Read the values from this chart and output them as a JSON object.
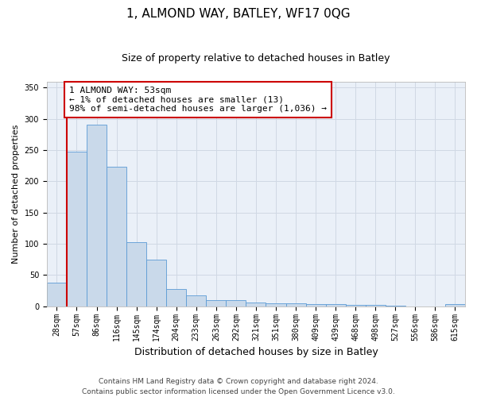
{
  "title": "1, ALMOND WAY, BATLEY, WF17 0QG",
  "subtitle": "Size of property relative to detached houses in Batley",
  "xlabel": "Distribution of detached houses by size in Batley",
  "ylabel": "Number of detached properties",
  "categories": [
    "28sqm",
    "57sqm",
    "86sqm",
    "116sqm",
    "145sqm",
    "174sqm",
    "204sqm",
    "233sqm",
    "263sqm",
    "292sqm",
    "321sqm",
    "351sqm",
    "380sqm",
    "409sqm",
    "439sqm",
    "468sqm",
    "498sqm",
    "527sqm",
    "556sqm",
    "586sqm",
    "615sqm"
  ],
  "values": [
    38,
    248,
    291,
    224,
    103,
    75,
    28,
    18,
    10,
    10,
    6,
    5,
    5,
    3,
    3,
    2,
    2,
    1,
    0,
    0,
    3
  ],
  "bar_color": "#c9d9ea",
  "bar_edge_color": "#5b9bd5",
  "annotation_text_line1": "1 ALMOND WAY: 53sqm",
  "annotation_text_line2": "← 1% of detached houses are smaller (13)",
  "annotation_text_line3": "98% of semi-detached houses are larger (1,036) →",
  "annotation_box_color": "#ffffff",
  "annotation_box_edge_color": "#cc0000",
  "vline_color": "#cc0000",
  "vline_x": 0.5,
  "ylim": [
    0,
    360
  ],
  "yticks": [
    0,
    50,
    100,
    150,
    200,
    250,
    300,
    350
  ],
  "grid_color": "#d0d8e4",
  "background_color": "#eaf0f8",
  "footer_line1": "Contains HM Land Registry data © Crown copyright and database right 2024.",
  "footer_line2": "Contains public sector information licensed under the Open Government Licence v3.0.",
  "title_fontsize": 11,
  "subtitle_fontsize": 9,
  "xlabel_fontsize": 9,
  "ylabel_fontsize": 8,
  "tick_fontsize": 7,
  "annotation_fontsize": 8,
  "footer_fontsize": 6.5
}
